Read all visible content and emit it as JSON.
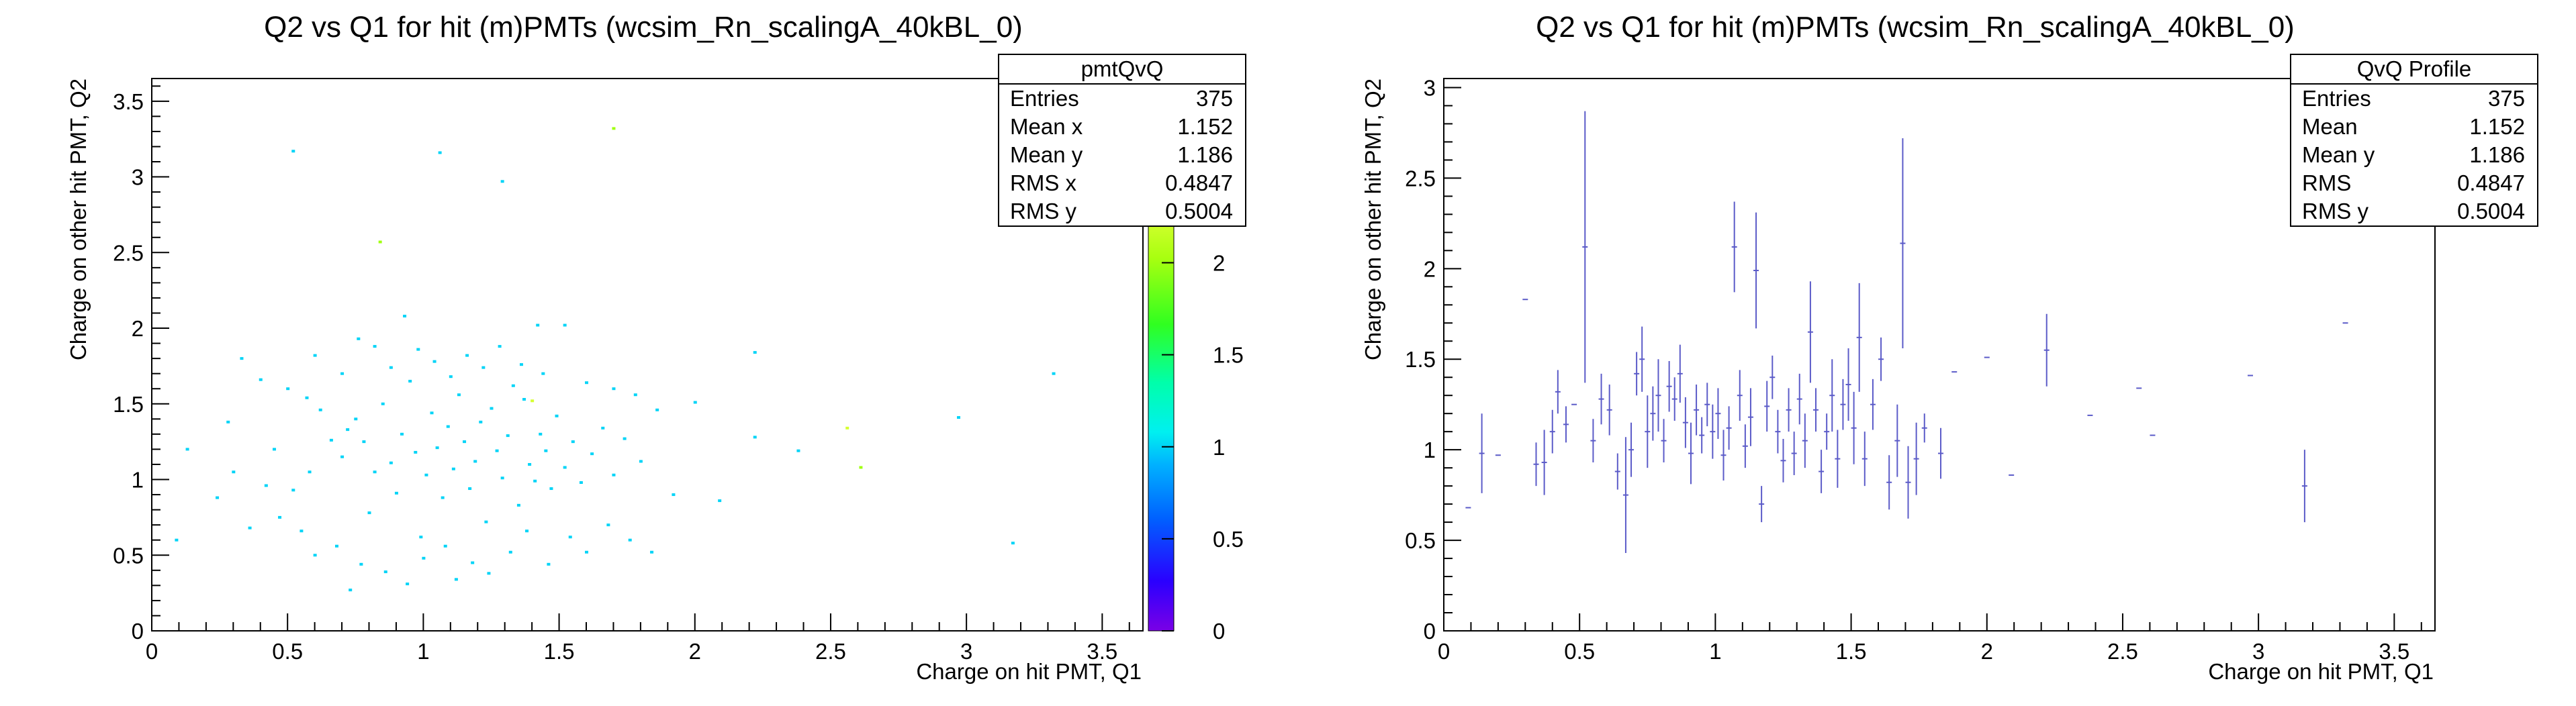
{
  "chart_data": [
    {
      "type": "scatter",
      "title": "Q2 vs Q1 for hit (m)PMTs (wcsim_Rn_scalingA_40kBL_0)",
      "xlabel": "Charge on hit PMT, Q1",
      "ylabel": "Charge on other hit PMT, Q2",
      "xlim": [
        0,
        3.65
      ],
      "ylim": [
        0,
        3.65
      ],
      "xticks": [
        "0",
        "0.5",
        "1",
        "1.5",
        "2",
        "2.5",
        "3",
        "3.5"
      ],
      "yticks": [
        "0",
        "0.5",
        "1",
        "1.5",
        "2",
        "2.5",
        "3",
        "3.5"
      ],
      "colorbar": {
        "range": [
          0,
          2.25
        ],
        "ticks": [
          "0",
          "0.5",
          "1",
          "1.5",
          "2"
        ]
      },
      "stats": {
        "title": "pmtQvQ",
        "rows": [
          {
            "label": "Entries",
            "value": "375"
          },
          {
            "label": "Mean x",
            "value": "1.152"
          },
          {
            "label": "Mean y",
            "value": "1.186"
          },
          {
            "label": "RMS x",
            "value": "0.4847"
          },
          {
            "label": "RMS y",
            "value": "0.5004"
          }
        ]
      },
      "points": [
        [
          0.52,
          3.17,
          1
        ],
        [
          1.06,
          3.16,
          1
        ],
        [
          0.84,
          2.57,
          2
        ],
        [
          1.29,
          2.97,
          1
        ],
        [
          1.7,
          3.32,
          2
        ],
        [
          1.42,
          2.02,
          1
        ],
        [
          1.52,
          2.02,
          1
        ],
        [
          0.93,
          2.08,
          1
        ],
        [
          0.09,
          0.6,
          1
        ],
        [
          0.13,
          1.2,
          1
        ],
        [
          0.3,
          1.05,
          1
        ],
        [
          0.4,
          1.66,
          1
        ],
        [
          0.5,
          1.6,
          1
        ],
        [
          0.57,
          1.54,
          1
        ],
        [
          0.62,
          1.46,
          1
        ],
        [
          0.33,
          1.8,
          1
        ],
        [
          0.45,
          1.2,
          1
        ],
        [
          0.52,
          0.93,
          1
        ],
        [
          0.58,
          1.05,
          1
        ],
        [
          0.66,
          1.26,
          1
        ],
        [
          0.7,
          1.15,
          1
        ],
        [
          0.72,
          1.33,
          1
        ],
        [
          0.75,
          1.4,
          1
        ],
        [
          0.78,
          1.25,
          1
        ],
        [
          0.8,
          0.78,
          1
        ],
        [
          0.82,
          1.05,
          1
        ],
        [
          0.85,
          1.5,
          1
        ],
        [
          0.88,
          1.11,
          1
        ],
        [
          0.9,
          0.91,
          1
        ],
        [
          0.92,
          1.3,
          1
        ],
        [
          0.95,
          1.65,
          1
        ],
        [
          0.97,
          1.18,
          1
        ],
        [
          0.99,
          0.62,
          1
        ],
        [
          1.01,
          1.03,
          1
        ],
        [
          1.03,
          1.44,
          1
        ],
        [
          1.05,
          1.21,
          1
        ],
        [
          1.07,
          0.88,
          1
        ],
        [
          1.09,
          1.35,
          1
        ],
        [
          1.11,
          1.07,
          1
        ],
        [
          1.13,
          1.56,
          1
        ],
        [
          1.15,
          1.25,
          1
        ],
        [
          1.17,
          0.94,
          1
        ],
        [
          1.19,
          1.12,
          1
        ],
        [
          1.21,
          1.38,
          1
        ],
        [
          1.23,
          0.72,
          1
        ],
        [
          1.25,
          1.47,
          1
        ],
        [
          1.27,
          1.19,
          1
        ],
        [
          1.29,
          1.01,
          1
        ],
        [
          1.31,
          1.29,
          1
        ],
        [
          1.33,
          1.62,
          1
        ],
        [
          1.35,
          0.83,
          1
        ],
        [
          1.37,
          1.53,
          1
        ],
        [
          1.39,
          1.1,
          1
        ],
        [
          1.41,
          0.99,
          1
        ],
        [
          1.43,
          1.3,
          1
        ],
        [
          1.45,
          1.19,
          1
        ],
        [
          1.47,
          0.94,
          1
        ],
        [
          1.49,
          1.42,
          1
        ],
        [
          1.52,
          1.08,
          1
        ],
        [
          1.55,
          1.25,
          1
        ],
        [
          1.58,
          0.98,
          1
        ],
        [
          1.62,
          1.17,
          1
        ],
        [
          1.66,
          1.34,
          1
        ],
        [
          1.7,
          1.03,
          1
        ],
        [
          1.74,
          1.27,
          1
        ],
        [
          1.8,
          1.12,
          1
        ],
        [
          1.86,
          1.46,
          1
        ],
        [
          1.92,
          0.9,
          1
        ],
        [
          2.0,
          1.51,
          1
        ],
        [
          2.09,
          0.86,
          1
        ],
        [
          2.22,
          1.28,
          1
        ],
        [
          2.22,
          1.84,
          1
        ],
        [
          2.38,
          1.19,
          1
        ],
        [
          2.56,
          1.34,
          3
        ],
        [
          2.61,
          1.08,
          2
        ],
        [
          2.97,
          1.41,
          1
        ],
        [
          3.17,
          0.58,
          1
        ],
        [
          3.32,
          1.7,
          1
        ],
        [
          1.4,
          1.52,
          3
        ],
        [
          0.36,
          0.68,
          1
        ],
        [
          0.42,
          0.96,
          1
        ],
        [
          0.47,
          0.75,
          1
        ],
        [
          0.55,
          0.66,
          1
        ],
        [
          0.6,
          0.5,
          1
        ],
        [
          0.68,
          0.56,
          1
        ],
        [
          0.73,
          0.27,
          1
        ],
        [
          0.77,
          0.44,
          1
        ],
        [
          0.86,
          0.39,
          1
        ],
        [
          0.94,
          0.31,
          1
        ],
        [
          1.0,
          0.48,
          1
        ],
        [
          1.08,
          0.56,
          1
        ],
        [
          1.12,
          0.34,
          1
        ],
        [
          1.18,
          0.45,
          1
        ],
        [
          1.24,
          0.38,
          1
        ],
        [
          1.32,
          0.52,
          1
        ],
        [
          1.38,
          0.66,
          1
        ],
        [
          1.46,
          0.44,
          1
        ],
        [
          1.54,
          0.62,
          1
        ],
        [
          1.6,
          0.52,
          1
        ],
        [
          1.68,
          0.7,
          1
        ],
        [
          1.76,
          0.6,
          1
        ],
        [
          1.84,
          0.52,
          1
        ],
        [
          0.24,
          0.88,
          1
        ],
        [
          0.28,
          1.38,
          1
        ],
        [
          0.6,
          1.82,
          1
        ],
        [
          0.7,
          1.7,
          1
        ],
        [
          0.76,
          1.93,
          1
        ],
        [
          0.82,
          1.88,
          1
        ],
        [
          0.88,
          1.74,
          1
        ],
        [
          0.98,
          1.86,
          1
        ],
        [
          1.04,
          1.78,
          1
        ],
        [
          1.1,
          1.68,
          1
        ],
        [
          1.16,
          1.82,
          1
        ],
        [
          1.22,
          1.74,
          1
        ],
        [
          1.28,
          1.88,
          1
        ],
        [
          1.36,
          1.76,
          1
        ],
        [
          1.44,
          1.7,
          1
        ],
        [
          1.6,
          1.64,
          1
        ],
        [
          1.7,
          1.6,
          1
        ],
        [
          1.78,
          1.56,
          1
        ]
      ]
    },
    {
      "type": "scatter",
      "title": "Q2 vs Q1 for hit (m)PMTs (wcsim_Rn_scalingA_40kBL_0)",
      "xlabel": "Charge on hit PMT, Q1",
      "ylabel": "Charge on other hit PMT, Q2",
      "xlim": [
        0,
        3.65
      ],
      "ylim": [
        0,
        3.05
      ],
      "xticks": [
        "0",
        "0.5",
        "1",
        "1.5",
        "2",
        "2.5",
        "3",
        "3.5"
      ],
      "yticks": [
        "0",
        "0.5",
        "1",
        "1.5",
        "2",
        "2.5",
        "3"
      ],
      "color": "#5b5bc8",
      "stats": {
        "title": "QvQ Profile",
        "rows": [
          {
            "label": "Entries",
            "value": "375"
          },
          {
            "label": "Mean",
            "value": "1.152"
          },
          {
            "label": "Mean y",
            "value": "1.186"
          },
          {
            "label": "RMS",
            "value": "0.4847"
          },
          {
            "label": "RMS y",
            "value": "0.5004"
          }
        ]
      },
      "profile": [
        [
          0.09,
          0.68,
          0
        ],
        [
          0.14,
          0.98,
          0.22
        ],
        [
          0.2,
          0.97,
          0
        ],
        [
          0.3,
          1.83,
          0
        ],
        [
          0.34,
          0.92,
          0.12
        ],
        [
          0.37,
          0.93,
          0.18
        ],
        [
          0.4,
          1.1,
          0.12
        ],
        [
          0.42,
          1.32,
          0.12
        ],
        [
          0.45,
          1.14,
          0.1
        ],
        [
          0.48,
          1.25,
          0.0
        ],
        [
          0.52,
          2.12,
          0.75
        ],
        [
          0.55,
          1.05,
          0.12
        ],
        [
          0.58,
          1.28,
          0.14
        ],
        [
          0.61,
          1.22,
          0.14
        ],
        [
          0.64,
          0.88,
          0.1
        ],
        [
          0.67,
          0.75,
          0.32
        ],
        [
          0.69,
          1.0,
          0.15
        ],
        [
          0.71,
          1.42,
          0.12
        ],
        [
          0.73,
          1.5,
          0.18
        ],
        [
          0.75,
          1.1,
          0.2
        ],
        [
          0.77,
          1.2,
          0.15
        ],
        [
          0.79,
          1.3,
          0.2
        ],
        [
          0.81,
          1.05,
          0.12
        ],
        [
          0.83,
          1.35,
          0.14
        ],
        [
          0.85,
          1.28,
          0.12
        ],
        [
          0.87,
          1.42,
          0.16
        ],
        [
          0.89,
          1.15,
          0.14
        ],
        [
          0.91,
          0.98,
          0.17
        ],
        [
          0.93,
          1.22,
          0.14
        ],
        [
          0.95,
          1.08,
          0.1
        ],
        [
          0.97,
          1.25,
          0.12
        ],
        [
          0.99,
          1.1,
          0.15
        ],
        [
          1.01,
          1.2,
          0.14
        ],
        [
          1.03,
          0.97,
          0.14
        ],
        [
          1.05,
          1.12,
          0.12
        ],
        [
          1.07,
          2.12,
          0.25
        ],
        [
          1.09,
          1.3,
          0.14
        ],
        [
          1.11,
          1.02,
          0.12
        ],
        [
          1.13,
          1.18,
          0.16
        ],
        [
          1.15,
          1.99,
          0.32
        ],
        [
          1.17,
          0.7,
          0.1
        ],
        [
          1.19,
          1.24,
          0.14
        ],
        [
          1.21,
          1.4,
          0.12
        ],
        [
          1.23,
          1.1,
          0.12
        ],
        [
          1.25,
          0.94,
          0.12
        ],
        [
          1.27,
          1.22,
          0.12
        ],
        [
          1.29,
          0.98,
          0.12
        ],
        [
          1.31,
          1.28,
          0.14
        ],
        [
          1.33,
          1.05,
          0.15
        ],
        [
          1.35,
          1.65,
          0.28
        ],
        [
          1.37,
          1.22,
          0.12
        ],
        [
          1.39,
          0.88,
          0.12
        ],
        [
          1.41,
          1.1,
          0.1
        ],
        [
          1.43,
          1.3,
          0.2
        ],
        [
          1.45,
          0.95,
          0.16
        ],
        [
          1.47,
          1.25,
          0.14
        ],
        [
          1.49,
          1.36,
          0.2
        ],
        [
          1.51,
          1.12,
          0.2
        ],
        [
          1.53,
          1.62,
          0.3
        ],
        [
          1.55,
          0.95,
          0.15
        ],
        [
          1.58,
          1.25,
          0.14
        ],
        [
          1.61,
          1.5,
          0.12
        ],
        [
          1.64,
          0.82,
          0.15
        ],
        [
          1.67,
          1.05,
          0.2
        ],
        [
          1.69,
          2.14,
          0.58
        ],
        [
          1.71,
          0.82,
          0.2
        ],
        [
          1.74,
          0.95,
          0.2
        ],
        [
          1.77,
          1.12,
          0.08
        ],
        [
          1.83,
          0.98,
          0.14
        ],
        [
          1.88,
          1.43,
          0
        ],
        [
          2.0,
          1.51,
          0
        ],
        [
          2.09,
          0.86,
          0
        ],
        [
          2.22,
          1.55,
          0.2
        ],
        [
          2.38,
          1.19,
          0
        ],
        [
          2.56,
          1.34,
          0
        ],
        [
          2.61,
          1.08,
          0
        ],
        [
          2.97,
          1.41,
          0
        ],
        [
          3.17,
          0.8,
          0.2
        ],
        [
          3.32,
          1.7,
          0
        ]
      ]
    }
  ]
}
